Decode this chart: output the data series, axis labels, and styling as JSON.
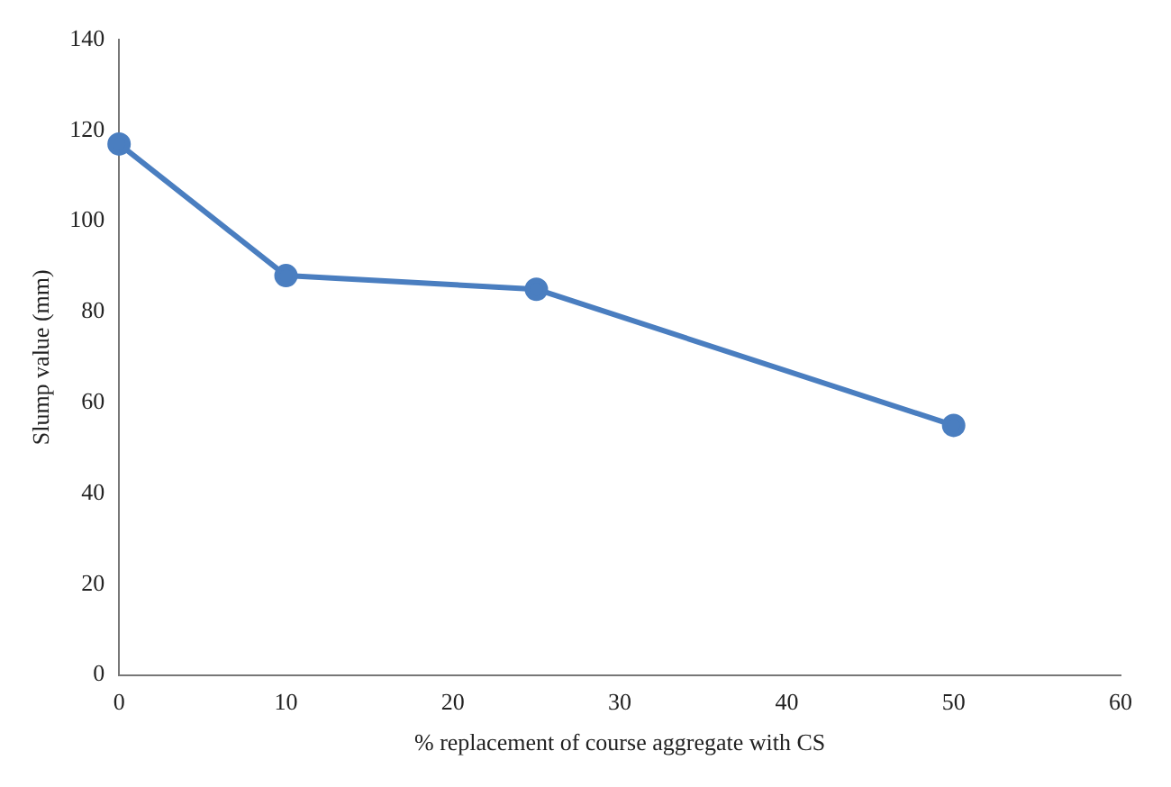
{
  "chart_data": {
    "type": "line",
    "xlabel": "% replacement of course aggregate with CS",
    "ylabel": "Slump value (mm)",
    "x": [
      0,
      10,
      25,
      50
    ],
    "series": [
      {
        "color": "#4a7ec0",
        "values": [
          117,
          88,
          85,
          55
        ]
      }
    ],
    "xlim": [
      0,
      60
    ],
    "xticks": [
      0,
      10,
      20,
      30,
      40,
      50,
      60
    ],
    "ylim": [
      0,
      140
    ],
    "yticks": [
      0,
      20,
      40,
      60,
      80,
      100,
      120,
      140
    ],
    "grid": false,
    "legend": false,
    "marker": "circle",
    "line_style": "solid"
  }
}
